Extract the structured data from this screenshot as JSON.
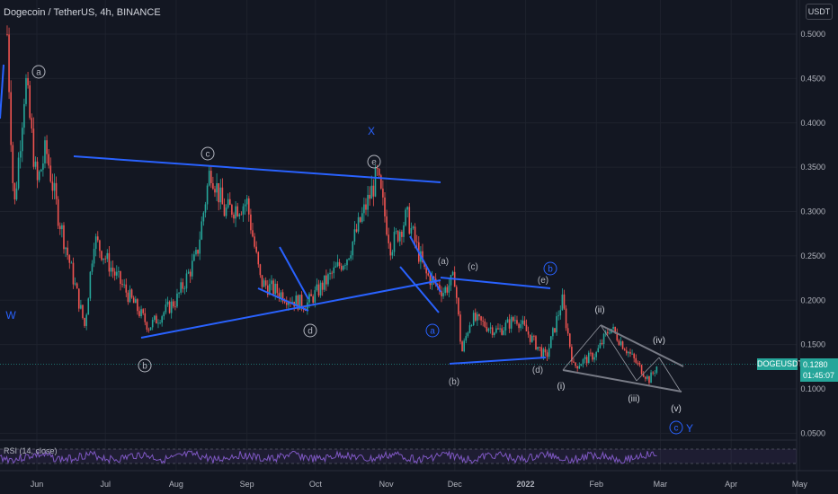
{
  "header": {
    "title": "Dogecoin / TetherUS, 4h, BINANCE",
    "currency_button": "USDT"
  },
  "price_label": {
    "ticker": "DOGEUSDT",
    "price": "0.1280",
    "countdown": "01:45:07"
  },
  "rsi_label": "RSI (14, close)",
  "colors": {
    "up": "#26a69a",
    "down": "#ef5350",
    "trendline": "#2962ff",
    "gray_line": "#9598a1",
    "rsi": "#7e57c2",
    "background": "#131722"
  },
  "chart_data": {
    "type": "candlestick",
    "title": "Dogecoin / TetherUS, 4h, BINANCE",
    "y_ticks": [
      "0.5000",
      "0.4500",
      "0.4000",
      "0.3500",
      "0.3000",
      "0.2500",
      "0.2000",
      "0.1500",
      "0.1000",
      "0.0500"
    ],
    "x_ticks": [
      "Jun",
      "Jul",
      "Aug",
      "Sep",
      "Oct",
      "Nov",
      "Dec",
      "2022",
      "Feb",
      "Mar",
      "Apr",
      "May"
    ],
    "ylim": [
      0.04,
      0.54
    ],
    "last_price": 0.128,
    "price_path": [
      [
        "2021-05-19",
        0.5
      ],
      [
        "2021-05-22",
        0.3
      ],
      [
        "2021-05-27",
        0.45
      ],
      [
        "2021-06-01",
        0.33
      ],
      [
        "2021-06-05",
        0.37
      ],
      [
        "2021-06-10",
        0.3
      ],
      [
        "2021-06-22",
        0.17
      ],
      [
        "2021-06-26",
        0.27
      ],
      [
        "2021-07-05",
        0.23
      ],
      [
        "2021-07-20",
        0.17
      ],
      [
        "2021-08-01",
        0.2
      ],
      [
        "2021-08-10",
        0.25
      ],
      [
        "2021-08-16",
        0.35
      ],
      [
        "2021-08-22",
        0.3
      ],
      [
        "2021-09-01",
        0.31
      ],
      [
        "2021-09-07",
        0.22
      ],
      [
        "2021-09-21",
        0.2
      ],
      [
        "2021-09-27",
        0.195
      ],
      [
        "2021-10-15",
        0.25
      ],
      [
        "2021-10-28",
        0.34
      ],
      [
        "2021-11-03",
        0.26
      ],
      [
        "2021-11-10",
        0.295
      ],
      [
        "2021-11-18",
        0.23
      ],
      [
        "2021-11-26",
        0.21
      ],
      [
        "2021-12-01",
        0.225
      ],
      [
        "2021-12-04",
        0.14
      ],
      [
        "2021-12-08",
        0.18
      ],
      [
        "2021-12-20",
        0.165
      ],
      [
        "2021-12-28",
        0.18
      ],
      [
        "2022-01-07",
        0.145
      ],
      [
        "2022-01-10",
        0.135
      ],
      [
        "2022-01-17",
        0.2
      ],
      [
        "2022-01-22",
        0.125
      ],
      [
        "2022-02-01",
        0.14
      ],
      [
        "2022-02-07",
        0.17
      ],
      [
        "2022-02-14",
        0.145
      ],
      [
        "2022-02-24",
        0.11
      ],
      [
        "2022-02-28",
        0.128
      ]
    ],
    "labels": {
      "wave_a": "a",
      "wave_b": "b",
      "wave_c": "c",
      "wave_d": "d",
      "wave_e": "e",
      "W": "W",
      "X": "X",
      "Y": "Y",
      "p_a": "(a)",
      "p_b": "(b)",
      "p_c": "(c)",
      "p_d": "(d)",
      "p_e": "(e)",
      "i": "(i)",
      "ii": "(ii)",
      "iii": "(iii)",
      "iv": "(iv)",
      "v": "(v)"
    }
  }
}
